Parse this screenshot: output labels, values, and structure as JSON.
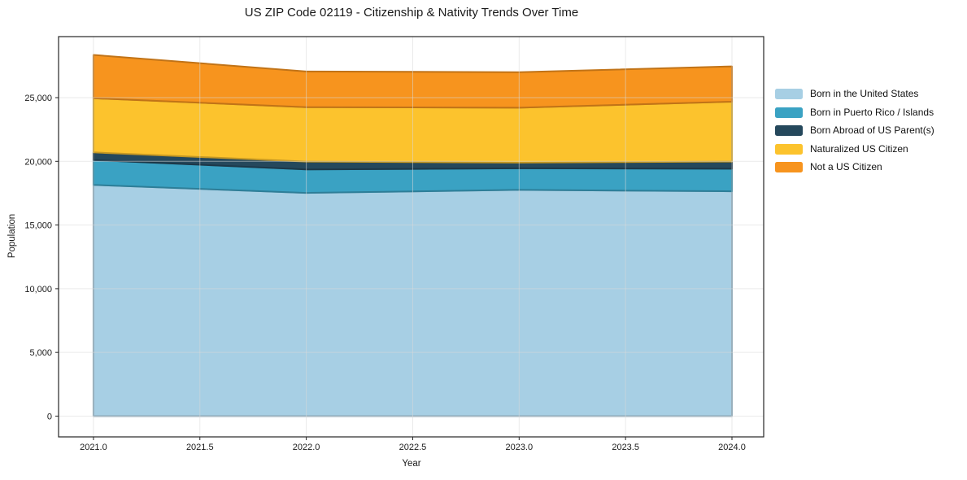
{
  "chart_data": {
    "type": "area",
    "stacked": true,
    "title": "US ZIP Code 02119 - Citizenship & Nativity Trends Over Time",
    "xlabel": "Year",
    "ylabel": "Population",
    "x": [
      2021,
      2022,
      2023,
      2024
    ],
    "series": [
      {
        "name": "Born in the United States",
        "color": "#A7CFE4",
        "values": [
          18150,
          17520,
          17760,
          17650
        ]
      },
      {
        "name": "Born in Puerto Rico / Islands",
        "color": "#3AA2C3",
        "values": [
          1950,
          1840,
          1690,
          1770
        ]
      },
      {
        "name": "Born Abroad of US Parent(s)",
        "color": "#25485C",
        "values": [
          600,
          620,
          450,
          560
        ]
      },
      {
        "name": "Naturalized US Citizen",
        "color": "#FCC32D",
        "values": [
          4250,
          4270,
          4310,
          4700
        ]
      },
      {
        "name": "Not a US Citizen",
        "color": "#F7941E",
        "values": [
          3400,
          2800,
          2790,
          2770
        ]
      }
    ],
    "xticks": {
      "values": [
        2021,
        2021.5,
        2022,
        2022.5,
        2023,
        2023.5,
        2024
      ],
      "labels": [
        "2021.0",
        "2021.5",
        "2022.0",
        "2022.5",
        "2023.0",
        "2023.5",
        "2024.0"
      ]
    },
    "yticks": {
      "values": [
        0,
        5000,
        10000,
        15000,
        20000,
        25000
      ],
      "labels": [
        "0",
        "5,000",
        "10,000",
        "15,000",
        "20,000",
        "25,000"
      ]
    },
    "xlim": [
      2020.836,
      2024.149
    ],
    "ylim": [
      -1630,
      29790
    ],
    "grid": true,
    "legend_position": "right",
    "colors": {
      "background": "#ffffff",
      "spine": "#262626",
      "gridline": "#D8D8D8",
      "text": "#1a1a1a"
    }
  }
}
